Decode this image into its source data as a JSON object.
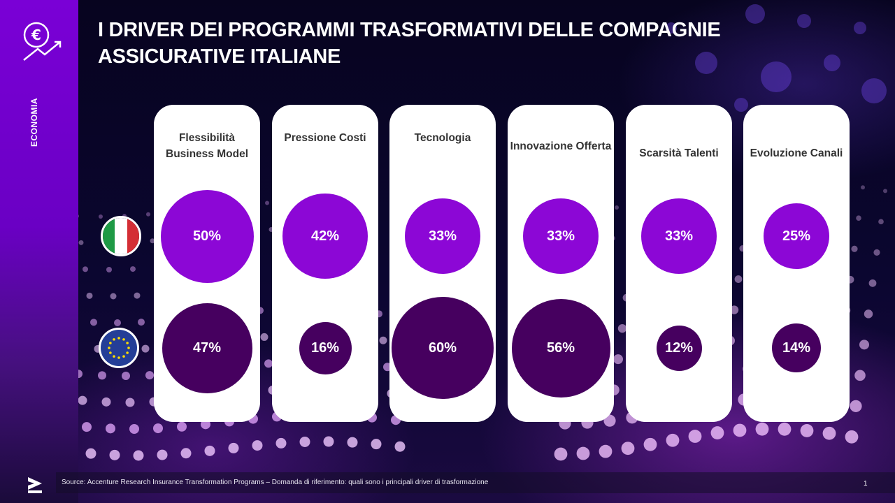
{
  "header": {
    "title_line1": "I DRIVER DEI PROGRAMMI TRASFORMATIVI DELLE COMPAGNIE",
    "title_line2": "ASSICURATIVE ITALIANE"
  },
  "sidebar": {
    "section_label": "ECONOMIA",
    "icon": "euro-growth-icon"
  },
  "legend": {
    "row1": "italy-flag",
    "row2": "eu-flag"
  },
  "colors": {
    "italy_bubble": "#8c07d6",
    "eu_bubble": "#46005f",
    "card_bg": "#ffffff",
    "accent": "#7a00d6"
  },
  "chart_data": {
    "type": "bubble",
    "title": "I DRIVER DEI PROGRAMMI TRASFORMATIVI DELLE COMPAGNIE ASSICURATIVE ITALIANE",
    "categories": [
      "Flessibilità Business Model",
      "Pressione Costi",
      "Tecnologia",
      "Innovazione Offerta",
      "Scarsità Talenti",
      "Evoluzione Canali"
    ],
    "series": [
      {
        "name": "Italia",
        "values": [
          50,
          42,
          33,
          33,
          33,
          25
        ],
        "labels": [
          "50%",
          "42%",
          "33%",
          "33%",
          "33%",
          "25%"
        ]
      },
      {
        "name": "Europa",
        "values": [
          47,
          16,
          60,
          56,
          12,
          14
        ],
        "labels": [
          "47%",
          "16%",
          "60%",
          "56%",
          "12%",
          "14%"
        ]
      }
    ],
    "unit": "%"
  },
  "footer": {
    "source": "Source: Accenture Research Insurance Transformation Programs – Domanda di riferimento: quali sono i principali driver di trasformazione",
    "page_number": "1"
  }
}
